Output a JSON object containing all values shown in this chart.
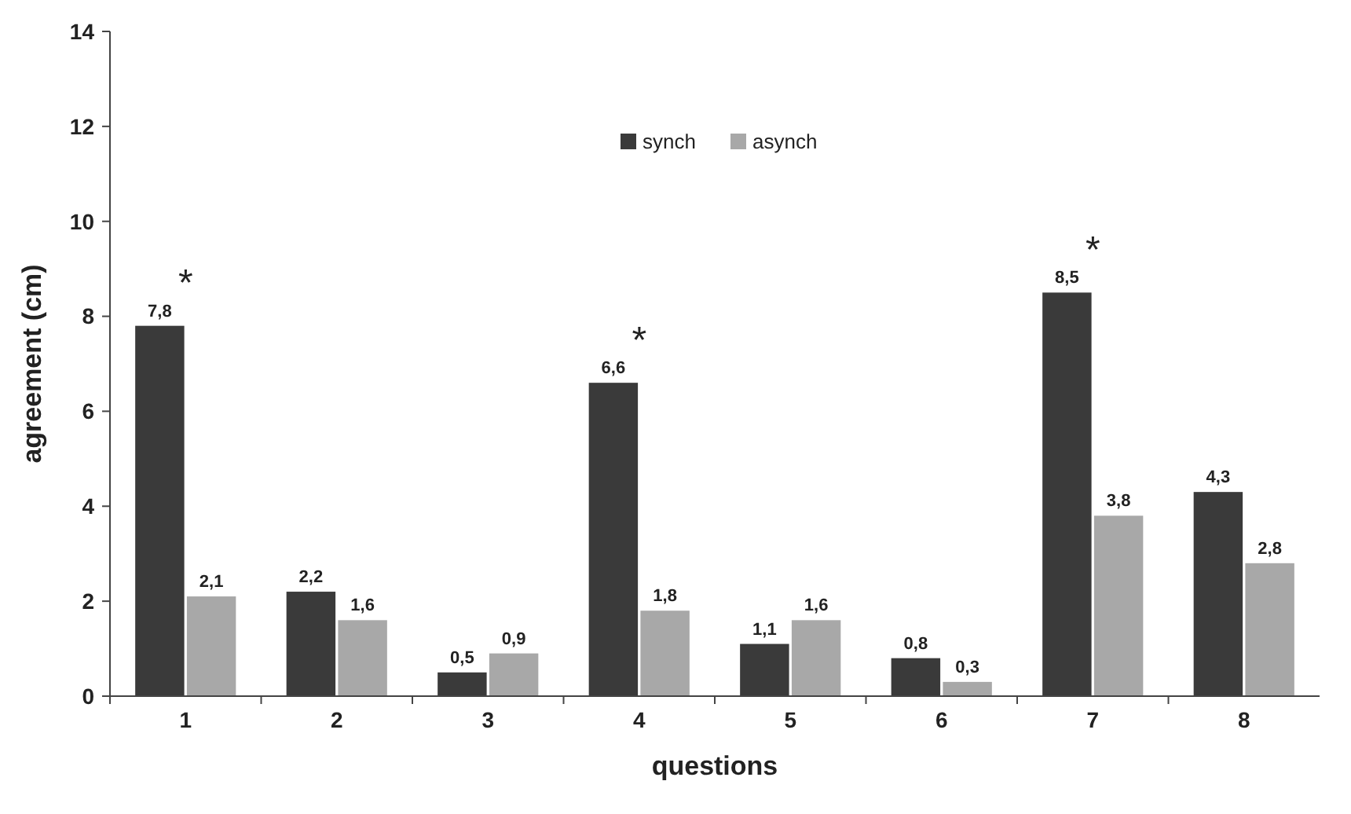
{
  "chart_data": {
    "type": "bar",
    "xlabel": "questions",
    "ylabel": "agreement (cm)",
    "categories": [
      "1",
      "2",
      "3",
      "4",
      "5",
      "6",
      "7",
      "8"
    ],
    "series": [
      {
        "name": "synch",
        "color": "#3a3a3a",
        "values": [
          7.8,
          2.2,
          0.5,
          6.6,
          1.1,
          0.8,
          8.5,
          4.3
        ],
        "value_labels": [
          "7,8",
          "2,2",
          "0,5",
          "6,6",
          "1,1",
          "0,8",
          "8,5",
          "4,3"
        ]
      },
      {
        "name": "asynch",
        "color": "#a8a8a8",
        "values": [
          2.1,
          1.6,
          0.9,
          1.8,
          1.6,
          0.3,
          3.8,
          2.8
        ],
        "value_labels": [
          "2,1",
          "1,6",
          "0,9",
          "1,8",
          "1,6",
          "0,3",
          "3,8",
          "2,8"
        ]
      }
    ],
    "ylim": [
      0,
      14
    ],
    "yticks": [
      0,
      2,
      4,
      6,
      8,
      10,
      12,
      14
    ],
    "grid": false,
    "legend": "top",
    "annotations": [
      {
        "text": "*",
        "x": "1",
        "y": 7.8
      },
      {
        "text": "*",
        "x": "4",
        "y": 6.6
      },
      {
        "text": "*",
        "x": "7",
        "y": 8.5
      }
    ]
  }
}
